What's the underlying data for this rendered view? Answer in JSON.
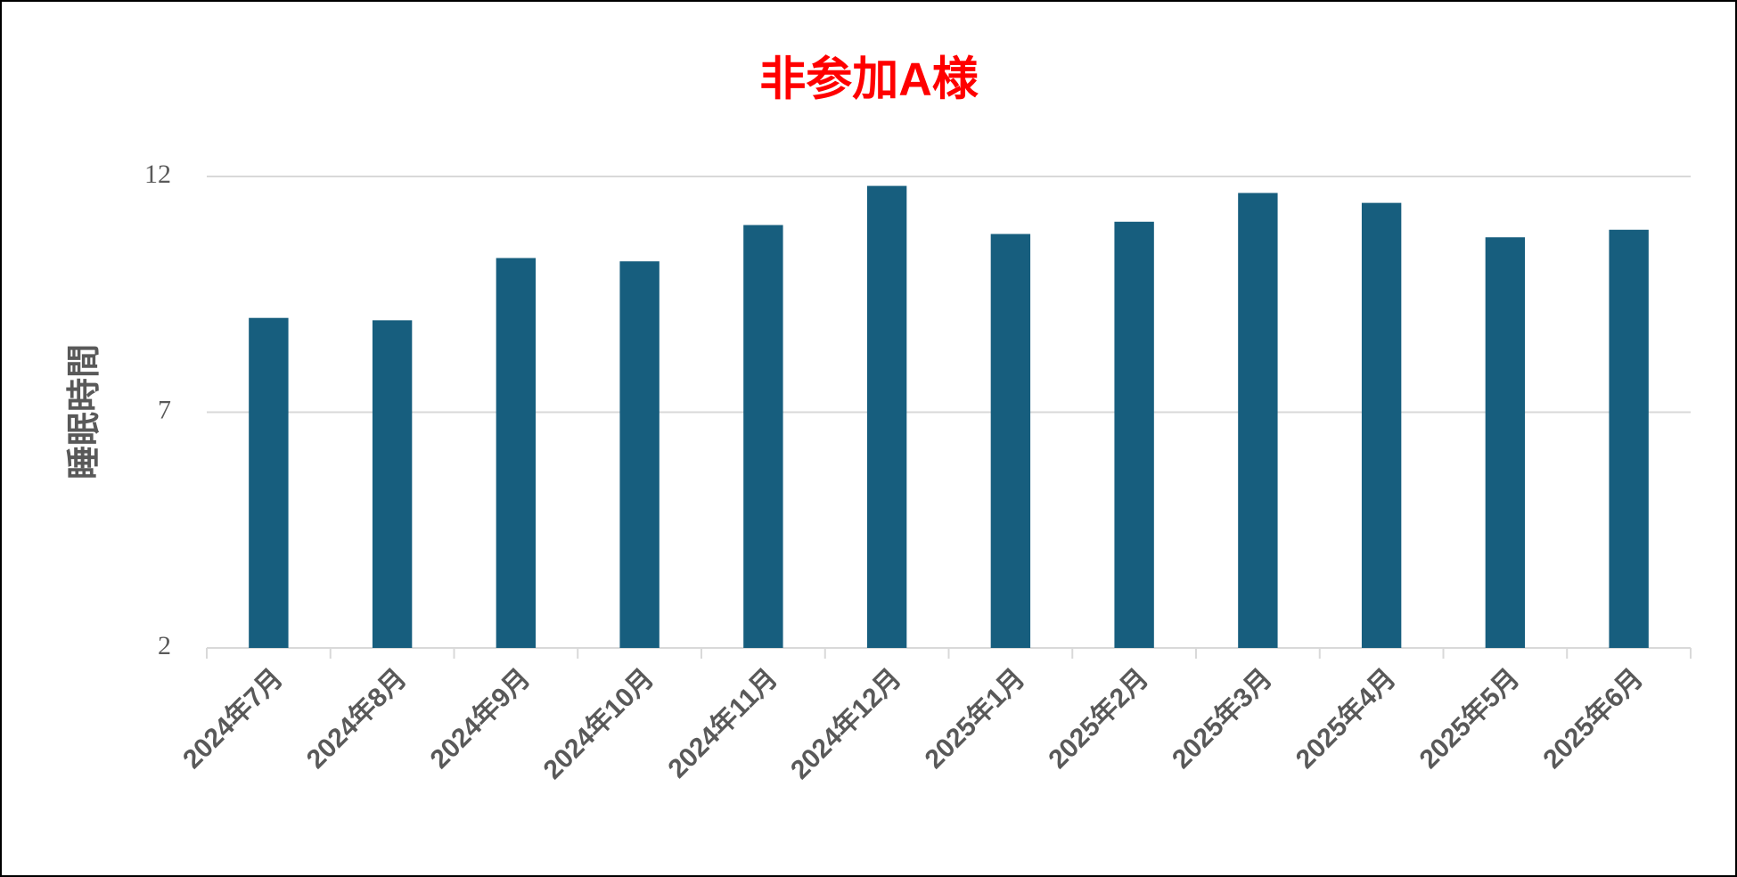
{
  "chart_data": {
    "type": "bar",
    "title": "非参加A様",
    "y_label": "睡眠時間",
    "categories": [
      "2024年7月",
      "2024年8月",
      "2024年9月",
      "2024年10月",
      "2024年11月",
      "2024年12月",
      "2025年1月",
      "2025年2月",
      "2025年3月",
      "2025年4月",
      "2025年5月",
      "2025年6月"
    ],
    "values": [
      9.0,
      8.95,
      10.27,
      10.2,
      10.97,
      11.8,
      10.78,
      11.04,
      11.65,
      11.44,
      10.71,
      10.87
    ],
    "color": "#175e7e",
    "ylim": [
      2,
      12
    ],
    "yticks": [
      2,
      7,
      12
    ],
    "grid": true
  }
}
